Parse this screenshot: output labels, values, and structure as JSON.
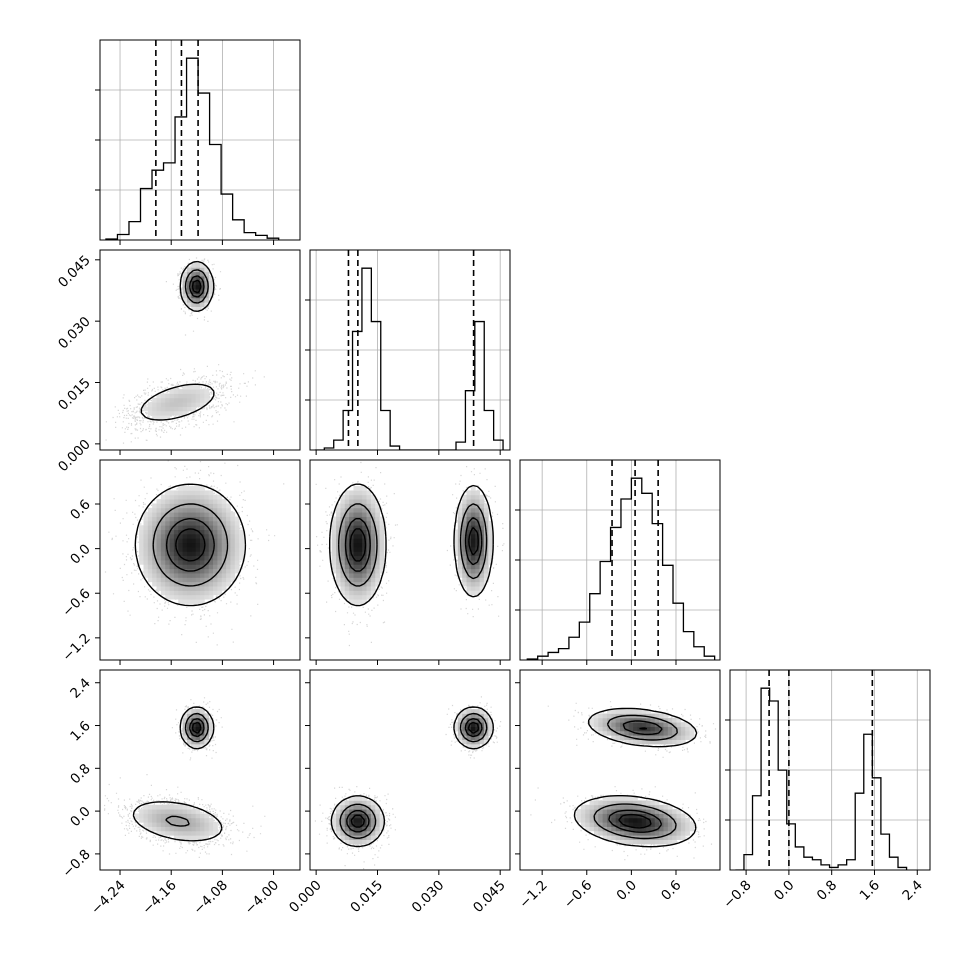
{
  "chart_data": {
    "type": "corner",
    "title": "",
    "parameters": [
      {
        "ticks": [
          -4.24,
          -4.16,
          -4.08,
          -4.0
        ],
        "tick_labels": [
          "−4.24",
          "−4.16",
          "−4.08",
          "−4.00"
        ],
        "range": [
          -4.2713,
          -3.9587
        ],
        "quantiles": [
          -4.184,
          -4.144,
          -4.118
        ]
      },
      {
        "ticks": [
          0.0,
          0.015,
          0.03,
          0.045
        ],
        "tick_labels": [
          "0.000",
          "0.015",
          "0.030",
          "0.045"
        ],
        "range": [
          -0.0015,
          0.0474
        ],
        "quantiles": [
          0.0079,
          0.0102,
          0.0385
        ]
      },
      {
        "ticks": [
          -1.2,
          -0.6,
          0.0,
          0.6
        ],
        "tick_labels": [
          "−1.2",
          "−0.6",
          "0.0",
          "0.6"
        ],
        "range": [
          -1.498,
          1.192
        ],
        "quantiles": [
          -0.26,
          0.05,
          0.36
        ]
      },
      {
        "ticks": [
          -0.8,
          0.0,
          0.8,
          1.6,
          2.4
        ],
        "tick_labels": [
          "−0.8",
          "0.0",
          "0.8",
          "1.6",
          "2.4"
        ],
        "range": [
          -1.101,
          2.638
        ],
        "quantiles": [
          -0.37,
          0.0,
          1.56
        ]
      }
    ],
    "histograms": [
      {
        "bins": [
          -4.262,
          -4.244,
          -4.226,
          -4.208,
          -4.19,
          -4.172,
          -4.154,
          -4.136,
          -4.118,
          -4.1,
          -4.082,
          -4.064,
          -4.046,
          -4.028,
          -4.01,
          -3.992
        ],
        "counts": [
          0.005,
          0.03,
          0.1,
          0.28,
          0.38,
          0.42,
          0.67,
          0.99,
          0.8,
          0.52,
          0.25,
          0.11,
          0.04,
          0.025,
          0.01
        ]
      },
      {
        "bins": [
          -0.0003,
          0.002,
          0.0043,
          0.0066,
          0.0089,
          0.0112,
          0.0135,
          0.0158,
          0.0181,
          0.0204,
          0.0227,
          0.025,
          0.0273,
          0.0296,
          0.0319,
          0.0342,
          0.0365,
          0.0388,
          0.0411,
          0.0434,
          0.0457
        ],
        "counts": [
          0.0,
          0.01,
          0.05,
          0.2,
          0.6,
          0.92,
          0.65,
          0.2,
          0.02,
          0.0,
          0.0,
          0.0,
          0.0,
          0.0,
          0.0,
          0.04,
          0.3,
          0.65,
          0.2,
          0.05
        ]
      },
      {
        "bins": [
          -1.4,
          -1.26,
          -1.12,
          -0.98,
          -0.84,
          -0.7,
          -0.56,
          -0.42,
          -0.28,
          -0.14,
          0.0,
          0.14,
          0.28,
          0.42,
          0.56,
          0.7,
          0.84,
          0.98,
          1.12
        ],
        "counts": [
          0.005,
          0.02,
          0.04,
          0.06,
          0.12,
          0.2,
          0.35,
          0.52,
          0.7,
          0.85,
          0.96,
          0.88,
          0.72,
          0.5,
          0.3,
          0.15,
          0.07,
          0.02
        ]
      },
      {
        "bins": [
          -1.0,
          -0.84,
          -0.68,
          -0.52,
          -0.36,
          -0.2,
          -0.04,
          0.12,
          0.28,
          0.44,
          0.6,
          0.76,
          0.92,
          1.08,
          1.24,
          1.4,
          1.56,
          1.72,
          1.88,
          2.04,
          2.2
        ],
        "counts": [
          0.0,
          0.06,
          0.29,
          0.71,
          0.66,
          0.39,
          0.18,
          0.09,
          0.05,
          0.04,
          0.02,
          0.01,
          0.02,
          0.04,
          0.3,
          0.53,
          0.36,
          0.14,
          0.05,
          0.01
        ]
      }
    ],
    "modes_2d": [
      {
        "row": 1,
        "col": 0,
        "modes": [
          {
            "cx": -4.12,
            "cy": 0.0385,
            "sx": 0.012,
            "sy": 0.0028,
            "rho": 0.0,
            "w": 0.5
          },
          {
            "cx": -4.15,
            "cy": 0.0102,
            "sx": 0.042,
            "sy": 0.0032,
            "rho": 0.5,
            "w": 0.5
          }
        ]
      },
      {
        "row": 2,
        "col": 0,
        "modes": [
          {
            "cx": -4.13,
            "cy": 0.05,
            "sx": 0.04,
            "sy": 0.38,
            "rho": 0.0,
            "w": 1.0
          }
        ]
      },
      {
        "row": 2,
        "col": 1,
        "modes": [
          {
            "cx": 0.0102,
            "cy": 0.05,
            "sx": 0.0032,
            "sy": 0.38,
            "rho": 0.0,
            "w": 0.62
          },
          {
            "cx": 0.0385,
            "cy": 0.1,
            "sx": 0.0022,
            "sy": 0.35,
            "rho": 0.0,
            "w": 0.38
          }
        ]
      },
      {
        "row": 3,
        "col": 0,
        "modes": [
          {
            "cx": -4.12,
            "cy": 1.56,
            "sx": 0.012,
            "sy": 0.18,
            "rho": 0.0,
            "w": 0.38
          },
          {
            "cx": -4.15,
            "cy": -0.19,
            "sx": 0.042,
            "sy": 0.22,
            "rho": -0.35,
            "w": 0.62
          }
        ]
      },
      {
        "row": 3,
        "col": 1,
        "modes": [
          {
            "cx": 0.0385,
            "cy": 1.56,
            "sx": 0.0022,
            "sy": 0.18,
            "rho": 0.0,
            "w": 0.38
          },
          {
            "cx": 0.0102,
            "cy": -0.19,
            "sx": 0.003,
            "sy": 0.22,
            "rho": 0.0,
            "w": 0.62
          }
        ]
      },
      {
        "row": 3,
        "col": 2,
        "modes": [
          {
            "cx": 0.15,
            "cy": 1.56,
            "sx": 0.35,
            "sy": 0.17,
            "rho": -0.3,
            "w": 0.38
          },
          {
            "cx": 0.05,
            "cy": -0.19,
            "sx": 0.38,
            "sy": 0.22,
            "rho": -0.25,
            "w": 0.62
          }
        ]
      }
    ]
  },
  "style": {
    "line_color": "#000000",
    "grid_color": "#b0b0b0",
    "background": "#ffffff"
  }
}
